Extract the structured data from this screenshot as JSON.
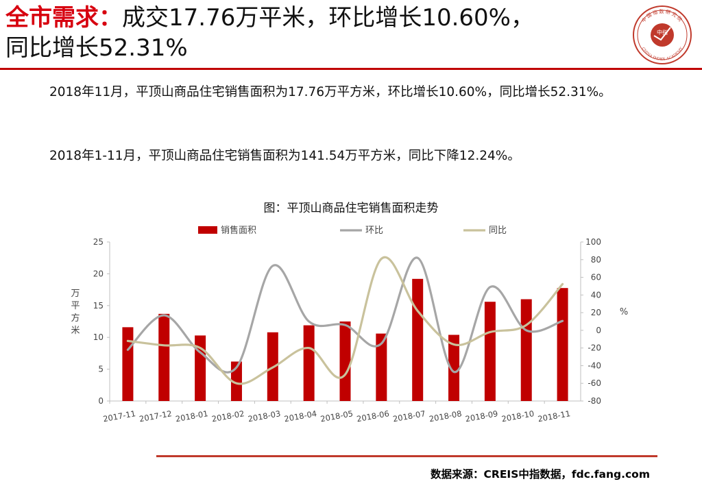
{
  "header": {
    "title_keyword": "全市需求：",
    "title_line1_rest": "成交17.76万平米，环比增长10.60%，",
    "title_line2": "同比增长52.31%"
  },
  "logo": {
    "icon": "china-index-academy-seal-icon",
    "center_text": "中指",
    "top_text": "中国指数研究院",
    "bottom_text": "CHINA INDEX ACADEMY"
  },
  "body": {
    "paragraph1": "2018年11月，平顶山商品住宅销售面积为17.76万平方米，环比增长10.60%，同比增长52.31%。",
    "paragraph2": "2018年1-11月，平顶山商品住宅销售面积为141.54万平方米，同比下降12.24%。"
  },
  "chart_title": "图：平顶山商品住宅销售面积走势",
  "chart_data": {
    "type": "bar",
    "title": "图：平顶山商品住宅销售面积走势",
    "categories": [
      "2017-11",
      "2017-12",
      "2018-01",
      "2018-02",
      "2018-03",
      "2018-04",
      "2018-05",
      "2018-06",
      "2018-07",
      "2018-08",
      "2018-09",
      "2018-10",
      "2018-11"
    ],
    "series": [
      {
        "name": "销售面积",
        "type": "bar",
        "axis": "left",
        "color": "#c00000",
        "values": [
          11.6,
          13.7,
          10.3,
          6.2,
          10.8,
          11.9,
          12.5,
          10.6,
          19.2,
          10.4,
          15.6,
          16.0,
          17.76
        ]
      },
      {
        "name": "环比",
        "type": "line",
        "axis": "right",
        "color": "#a6a6a6",
        "values": [
          -22,
          17,
          -25,
          -42,
          73,
          10,
          6,
          -15,
          82,
          -47,
          49,
          0,
          10.6
        ]
      },
      {
        "name": "同比",
        "type": "line",
        "axis": "right",
        "color": "#c9c29c",
        "values": [
          -12,
          -17,
          -20,
          -60,
          -42,
          -20,
          -50,
          81,
          22,
          -16,
          -2,
          6,
          52.31
        ]
      }
    ],
    "ylabel": "万平方米",
    "y2label": "%",
    "ylim": [
      0,
      25
    ],
    "y_ticks": [
      "0",
      "5",
      "10",
      "15",
      "20",
      "25"
    ],
    "y2lim": [
      -80,
      100
    ],
    "y2_ticks": [
      "-80",
      "-60",
      "-40",
      "-20",
      "0",
      "20",
      "40",
      "60",
      "80",
      "100"
    ],
    "legend_position": "top",
    "grid": false
  },
  "footer": {
    "source": "数据来源：CREIS中指数据，fdc.fang.com"
  }
}
